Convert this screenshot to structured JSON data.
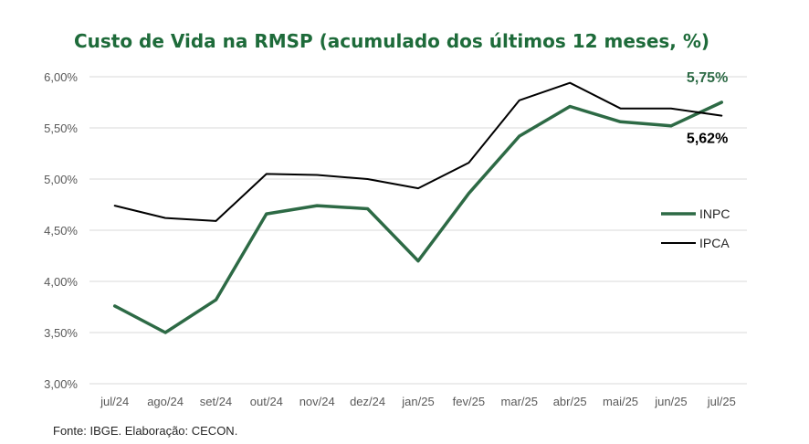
{
  "chart_data": {
    "type": "line",
    "title": "Custo de Vida na RMSP (acumulado dos últimos 12 meses, %)",
    "categories": [
      "jul/24",
      "ago/24",
      "set/24",
      "out/24",
      "nov/24",
      "dez/24",
      "jan/25",
      "fev/25",
      "mar/25",
      "abr/25",
      "mai/25",
      "jun/25",
      "jul/25"
    ],
    "ylim": [
      3.0,
      6.0
    ],
    "yticks": [
      "3,00%",
      "3,50%",
      "4,00%",
      "4,50%",
      "5,00%",
      "5,50%",
      "6,00%"
    ],
    "ytick_values": [
      3.0,
      3.5,
      4.0,
      4.5,
      5.0,
      5.5,
      6.0
    ],
    "grid": true,
    "legend_position": "right",
    "series": [
      {
        "name": "INPC",
        "color": "#2d6a45",
        "values": [
          3.76,
          3.5,
          3.82,
          4.66,
          4.74,
          4.71,
          4.2,
          4.86,
          5.42,
          5.71,
          5.56,
          5.52,
          5.75
        ]
      },
      {
        "name": "IPCA",
        "color": "#000000",
        "values": [
          4.74,
          4.62,
          4.59,
          5.05,
          5.04,
          5.0,
          4.91,
          5.16,
          5.77,
          5.94,
          5.69,
          5.69,
          5.62
        ]
      }
    ],
    "annotations": [
      {
        "series": "INPC",
        "text": "5,75%",
        "color": "#2d6a45"
      },
      {
        "series": "IPCA",
        "text": "5,62%",
        "color": "#000000"
      }
    ],
    "source": "Fonte: IBGE. Elaboração: CECON."
  }
}
